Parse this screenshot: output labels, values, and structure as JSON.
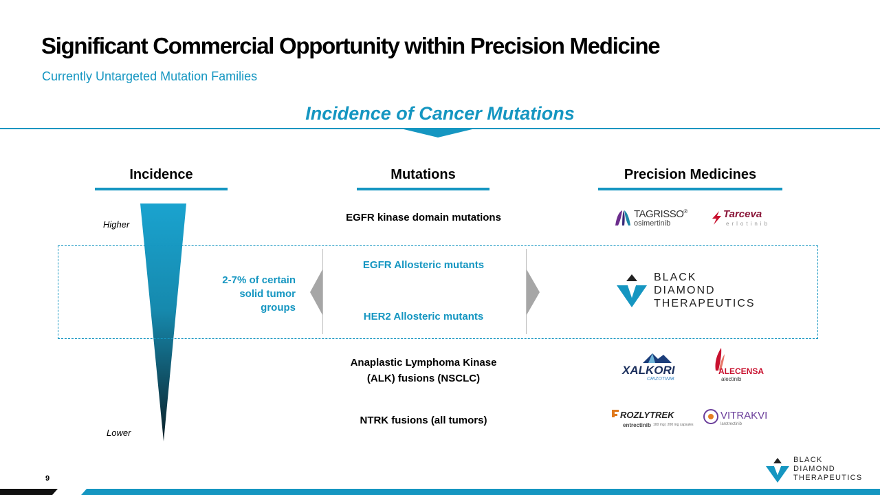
{
  "title": "Significant Commercial Opportunity within Precision Medicine",
  "subtitle": "Currently Untargeted Mutation Families",
  "center_heading": "Incidence of Cancer Mutations",
  "columns": {
    "incidence": "Incidence",
    "mutations": "Mutations",
    "precision_medicines": "Precision Medicines"
  },
  "incidence_labels": {
    "higher": "Higher",
    "lower": "Lower"
  },
  "range_text": [
    "2-7% of certain",
    "solid tumor",
    "groups"
  ],
  "mutations": {
    "egfr_kinase": "EGFR kinase domain mutations",
    "egfr_allosteric": "EGFR Allosteric mutants",
    "her2_allosteric": "HER2 Allosteric mutants",
    "alk_line1": "Anaplastic Lymphoma Kinase",
    "alk_line2": "(ALK) fusions (NSCLC)",
    "ntrk": "NTRK fusions (all tumors)"
  },
  "logos": {
    "tagrisso": {
      "name": "TAGRISSO",
      "reg": "®",
      "generic": "osimertinib"
    },
    "tarceva": {
      "name": "Tarceva",
      "generic": "erlotinib"
    },
    "bdt_large": {
      "line1": "BLACK",
      "line2": "DIAMOND",
      "line3": "THERAPEUTICS"
    },
    "xalkori": {
      "name": "XALKORI",
      "generic": "CRIZOTINIB"
    },
    "alecensa": {
      "name": "ALECENSA",
      "generic": "alectinib"
    },
    "rozlytrek": {
      "name": "ROZLYTREK",
      "generic": "entrectinib",
      "dose": "100 mg | 200 mg capsules"
    },
    "vitrakvi": {
      "name": "VITRAKVI",
      "generic": "larotrectinib"
    },
    "bdt_small": {
      "line1": "BLACK",
      "line2": "DIAMOND",
      "line3": "THERAPEUTICS"
    }
  },
  "page_number": "9",
  "colors": {
    "accent": "#1596c1",
    "arrow_gray": "#a6a6a6",
    "dark": "#111111"
  },
  "icons": [
    "left-chevron-icon",
    "right-chevron-icon",
    "incidence-gradient-wedge",
    "black-diamond-logo-icon"
  ]
}
